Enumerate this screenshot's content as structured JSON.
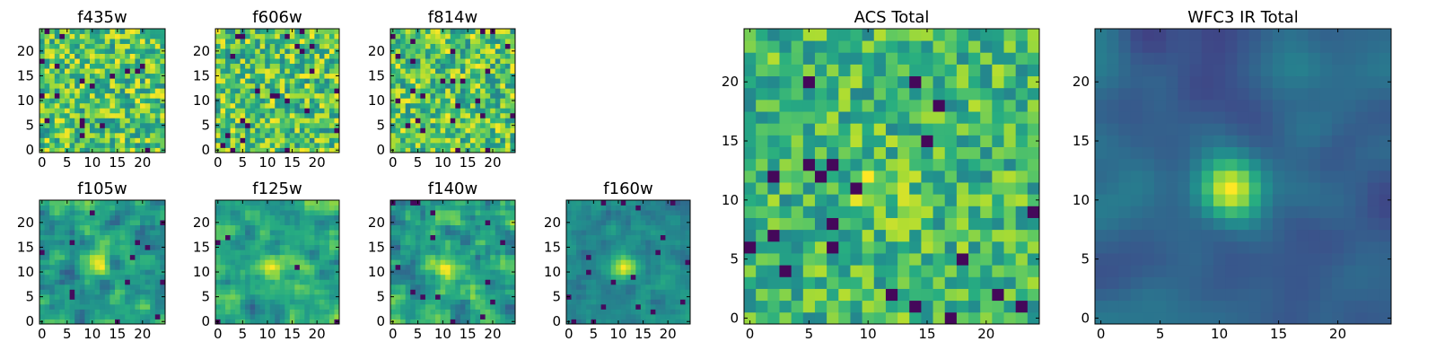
{
  "chart_data": [
    {
      "type": "heatmap",
      "title": "f435w",
      "colormap": "viridis",
      "grid_size": 25,
      "xlim": [
        0,
        24
      ],
      "ylim": [
        0,
        24
      ],
      "xticks": [
        "0",
        "5",
        "10",
        "15",
        "20"
      ],
      "yticks": [
        "0",
        "5",
        "10",
        "15",
        "20"
      ],
      "pattern": "noise",
      "peak": "none"
    },
    {
      "type": "heatmap",
      "title": "f606w",
      "colormap": "viridis",
      "grid_size": 25,
      "xlim": [
        0,
        24
      ],
      "ylim": [
        0,
        24
      ],
      "xticks": [
        "0",
        "5",
        "10",
        "15",
        "20"
      ],
      "yticks": [
        "0",
        "5",
        "10",
        "15",
        "20"
      ],
      "pattern": "noise",
      "peak": "none"
    },
    {
      "type": "heatmap",
      "title": "f814w",
      "colormap": "viridis",
      "grid_size": 25,
      "xlim": [
        0,
        24
      ],
      "ylim": [
        0,
        24
      ],
      "xticks": [
        "0",
        "5",
        "10",
        "15",
        "20"
      ],
      "yticks": [
        "0",
        "5",
        "10",
        "15",
        "20"
      ],
      "pattern": "noise",
      "peak": "none"
    },
    {
      "type": "heatmap",
      "title": "f105w",
      "colormap": "viridis",
      "grid_size": 25,
      "xlim": [
        0,
        24
      ],
      "ylim": [
        0,
        24
      ],
      "xticks": [
        "0",
        "5",
        "10",
        "15",
        "20"
      ],
      "yticks": [
        "0",
        "5",
        "10",
        "15",
        "20"
      ],
      "pattern": "smooth-noise",
      "peak": "faint-center"
    },
    {
      "type": "heatmap",
      "title": "f125w",
      "colormap": "viridis",
      "grid_size": 25,
      "xlim": [
        0,
        24
      ],
      "ylim": [
        0,
        24
      ],
      "xticks": [
        "0",
        "5",
        "10",
        "15",
        "20"
      ],
      "yticks": [
        "0",
        "5",
        "10",
        "15",
        "20"
      ],
      "pattern": "smooth-noise",
      "peak": "faint-center"
    },
    {
      "type": "heatmap",
      "title": "f140w",
      "colormap": "viridis",
      "grid_size": 25,
      "xlim": [
        0,
        24
      ],
      "ylim": [
        0,
        24
      ],
      "xticks": [
        "0",
        "5",
        "10",
        "15",
        "20"
      ],
      "yticks": [
        "0",
        "5",
        "10",
        "15",
        "20"
      ],
      "pattern": "smooth-noise",
      "peak": "faint-center"
    },
    {
      "type": "heatmap",
      "title": "f160w",
      "colormap": "viridis",
      "grid_size": 25,
      "xlim": [
        0,
        24
      ],
      "ylim": [
        0,
        24
      ],
      "xticks": [
        "0",
        "5",
        "10",
        "15",
        "20"
      ],
      "yticks": [
        "0",
        "5",
        "10",
        "15",
        "20"
      ],
      "pattern": "smooth-noise",
      "peak": "center"
    },
    {
      "type": "heatmap",
      "title": "ACS Total",
      "colormap": "viridis",
      "grid_size": 25,
      "xlim": [
        0,
        24
      ],
      "ylim": [
        0,
        24
      ],
      "xticks": [
        "0",
        "5",
        "10",
        "15",
        "20"
      ],
      "yticks": [
        "0",
        "5",
        "10",
        "15",
        "20"
      ],
      "pattern": "noise",
      "peak": "faint-center"
    },
    {
      "type": "heatmap",
      "title": "WFC3 IR Total",
      "colormap": "viridis",
      "grid_size": 25,
      "xlim": [
        0,
        24
      ],
      "ylim": [
        0,
        24
      ],
      "xticks": [
        "0",
        "5",
        "10",
        "15",
        "20"
      ],
      "yticks": [
        "0",
        "5",
        "10",
        "15",
        "20"
      ],
      "pattern": "smooth",
      "peak": "center"
    }
  ]
}
